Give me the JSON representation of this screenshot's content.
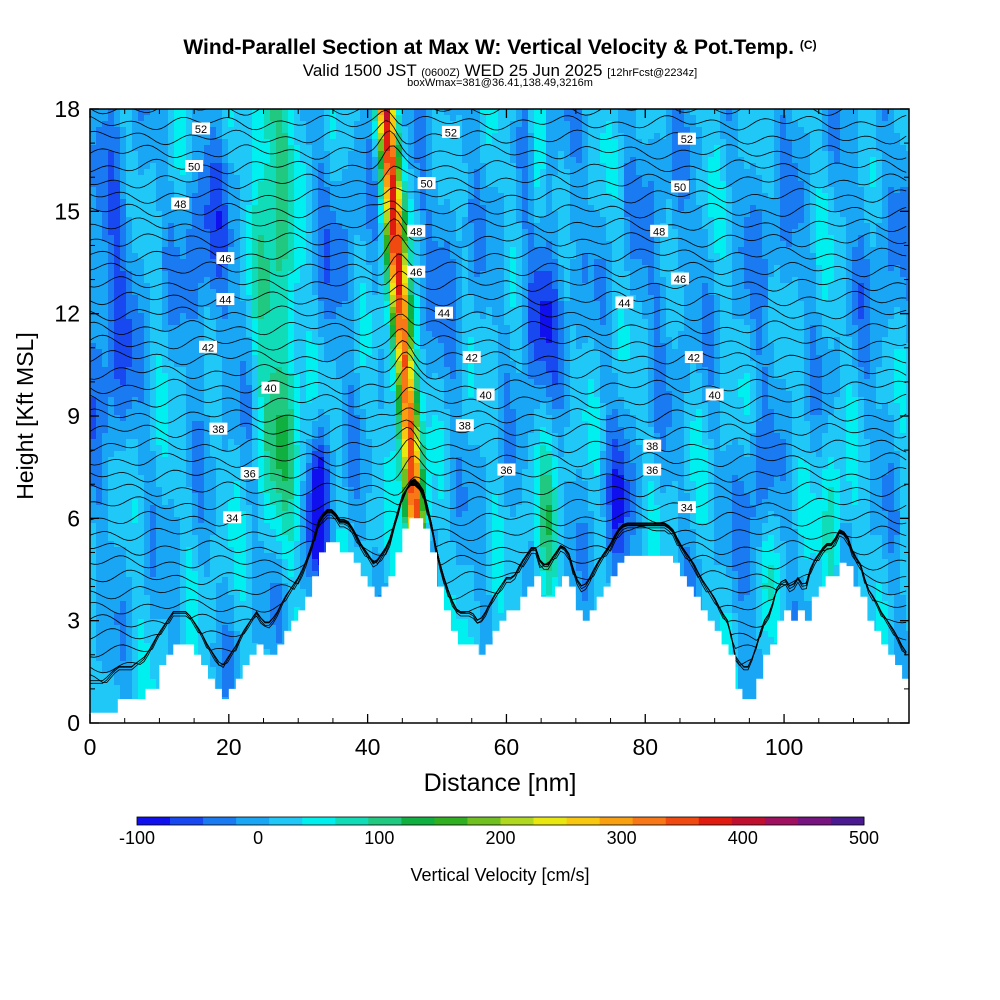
{
  "header": {
    "title": "Wind-Parallel Section at Max W: Vertical Velocity & Pot.Temp.",
    "copyright": "(C)",
    "valid_prefix": "Valid 1500 JST",
    "valid_utc": "(0600Z)",
    "valid_date": "WED 25 Jun 2025",
    "forecast": "[12hrFcst@2234z]",
    "box_info": "boxWmax=381@36.41,138.49,3216m"
  },
  "chart_data": {
    "type": "heatmap",
    "xlabel": "Distance [nm]",
    "ylabel": "Height [Kft MSL]",
    "xlim": [
      0,
      118
    ],
    "ylim": [
      0,
      18
    ],
    "x_ticks": [
      0,
      20,
      40,
      60,
      80,
      100
    ],
    "y_ticks": [
      0,
      3,
      6,
      9,
      12,
      15,
      18
    ],
    "colorbar": {
      "label": "Vertical Velocity [cm/s]",
      "range": [
        -100,
        500
      ],
      "tick_labels": [
        -100,
        0,
        100,
        200,
        300,
        400,
        500
      ],
      "colors": [
        "#1010ee",
        "#1848f0",
        "#1a7af2",
        "#18a6f5",
        "#20c8f8",
        "#00f0f0",
        "#10ddb8",
        "#20c880",
        "#10b040",
        "#30b020",
        "#70c020",
        "#b0d820",
        "#e8e810",
        "#f8c810",
        "#f8a010",
        "#f87818",
        "#f04a10",
        "#e01c10",
        "#c01030",
        "#a01060",
        "#781480",
        "#4a1a90"
      ]
    },
    "updrafts": [
      {
        "center_nm": 27,
        "peak_cm_s": 130
      },
      {
        "center_nm": 45.5,
        "peak_cm_s": 381
      },
      {
        "center_nm": 66,
        "peak_cm_s": 110
      },
      {
        "center_nm": 107,
        "peak_cm_s": 100
      }
    ],
    "downdrafts": [
      {
        "center_nm": 33,
        "min_cm_s": -100
      },
      {
        "center_nm": 65,
        "min_cm_s": -40
      },
      {
        "center_nm": 76,
        "min_cm_s": -60
      },
      {
        "center_nm": 96,
        "min_cm_s": -40
      }
    ],
    "terrain": {
      "x_nm": [
        0,
        2,
        4,
        6,
        8,
        10,
        11,
        12,
        14,
        15,
        16,
        17,
        18,
        19,
        20,
        21,
        22,
        23,
        24,
        25,
        26,
        27,
        28,
        29,
        30,
        31,
        32,
        33,
        34,
        35,
        36,
        37,
        38,
        39,
        40,
        41,
        42,
        43,
        44,
        45,
        46,
        47,
        48,
        49,
        50,
        51,
        52,
        53,
        54,
        55,
        56,
        57,
        58,
        59,
        60,
        61,
        62,
        63,
        64,
        65,
        66,
        67,
        68,
        69,
        70,
        71,
        72,
        73,
        74,
        75,
        76,
        77,
        78,
        79,
        80,
        81,
        82,
        83,
        84,
        85,
        86,
        87,
        88,
        89,
        90,
        91,
        92,
        93,
        94,
        95,
        96,
        97,
        98,
        99,
        100,
        101,
        102,
        103,
        104,
        105,
        106,
        107,
        108,
        109,
        110,
        111,
        112,
        113,
        114,
        115,
        116,
        117,
        118
      ],
      "height_kft": [
        0.3,
        0.3,
        0.7,
        0.7,
        1.0,
        1.7,
        2.0,
        2.3,
        2.3,
        2.0,
        1.7,
        1.3,
        1.0,
        0.7,
        1.0,
        1.3,
        1.7,
        2.0,
        2.3,
        2.0,
        2.0,
        2.3,
        2.7,
        3.0,
        3.3,
        3.7,
        4.3,
        5.0,
        5.3,
        5.3,
        5.0,
        5.0,
        4.7,
        4.3,
        4.0,
        3.7,
        4.0,
        4.3,
        5.0,
        5.7,
        6.0,
        6.0,
        5.7,
        5.0,
        4.0,
        3.3,
        2.7,
        2.3,
        2.3,
        2.3,
        2.0,
        2.3,
        2.7,
        3.0,
        3.3,
        3.3,
        3.7,
        4.0,
        4.3,
        3.7,
        3.7,
        4.0,
        4.3,
        4.0,
        3.3,
        3.0,
        3.3,
        3.7,
        4.0,
        4.3,
        4.7,
        4.9,
        4.9,
        4.9,
        4.9,
        4.9,
        4.9,
        4.9,
        4.7,
        4.3,
        4.0,
        3.7,
        3.3,
        3.0,
        2.7,
        2.3,
        2.0,
        1.0,
        0.7,
        0.7,
        1.3,
        2.0,
        2.3,
        3.0,
        3.3,
        3.0,
        3.3,
        3.0,
        3.7,
        4.0,
        4.3,
        4.3,
        4.7,
        4.6,
        4.0,
        3.7,
        3.0,
        2.7,
        2.3,
        2.0,
        1.7,
        1.3,
        1.0
      ]
    },
    "theta_contours": [
      {
        "label": "34",
        "label_x_nm": 20.5,
        "base_kft": 6.0
      },
      {
        "label": "36",
        "label_x_nm": 23,
        "base_kft": 7.3
      },
      {
        "label": "38",
        "label_x_nm": 18.5,
        "base_kft": 8.6
      },
      {
        "label": "40",
        "label_x_nm": 26,
        "base_kft": 9.8
      },
      {
        "label": "42",
        "label_x_nm": 17,
        "base_kft": 11.0
      },
      {
        "label": "44",
        "label_x_nm": 19.5,
        "base_kft": 12.4
      },
      {
        "label": "46",
        "label_x_nm": 19.5,
        "base_kft": 13.6
      },
      {
        "label": "48",
        "label_x_nm": 13,
        "base_kft": 15.2
      },
      {
        "label": "50",
        "label_x_nm": 15,
        "base_kft": 16.3
      },
      {
        "label": "52",
        "label_x_nm": 16,
        "base_kft": 17.4
      }
    ],
    "theta_labels_mid": [
      {
        "label": "52",
        "x_nm": 52,
        "y_kft": 17.3
      },
      {
        "label": "50",
        "x_nm": 48.5,
        "y_kft": 15.8
      },
      {
        "label": "48",
        "x_nm": 47,
        "y_kft": 14.4
      },
      {
        "label": "46",
        "x_nm": 47,
        "y_kft": 13.2
      },
      {
        "label": "44",
        "x_nm": 51,
        "y_kft": 12.0
      },
      {
        "label": "42",
        "x_nm": 55,
        "y_kft": 10.7
      },
      {
        "label": "40",
        "x_nm": 57,
        "y_kft": 9.6
      },
      {
        "label": "38",
        "x_nm": 54,
        "y_kft": 8.7
      },
      {
        "label": "36",
        "x_nm": 60,
        "y_kft": 7.4
      }
    ],
    "theta_labels_right": [
      {
        "label": "52",
        "x_nm": 86,
        "y_kft": 17.1
      },
      {
        "label": "50",
        "x_nm": 85,
        "y_kft": 15.7
      },
      {
        "label": "48",
        "x_nm": 82,
        "y_kft": 14.4
      },
      {
        "label": "46",
        "x_nm": 85,
        "y_kft": 13.0
      },
      {
        "label": "44",
        "x_nm": 77,
        "y_kft": 12.3
      },
      {
        "label": "42",
        "x_nm": 87,
        "y_kft": 10.7
      },
      {
        "label": "40",
        "x_nm": 90,
        "y_kft": 9.6
      },
      {
        "label": "38",
        "x_nm": 81,
        "y_kft": 8.1
      },
      {
        "label": "36",
        "x_nm": 81,
        "y_kft": 7.4
      },
      {
        "label": "34",
        "x_nm": 86,
        "y_kft": 6.3
      }
    ]
  }
}
